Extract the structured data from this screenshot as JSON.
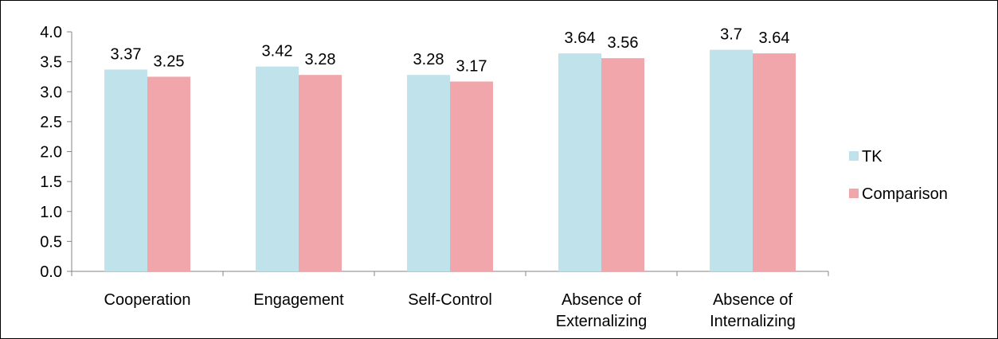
{
  "chart_data": {
    "type": "bar",
    "title": "",
    "xlabel": "",
    "ylabel": "",
    "ylim": [
      0,
      4.0
    ],
    "yticks": [
      "0.0",
      "0.5",
      "1.0",
      "1.5",
      "2.0",
      "2.5",
      "3.0",
      "3.5",
      "4.0"
    ],
    "grid": false,
    "legend_position": "right",
    "categories": [
      [
        "Cooperation"
      ],
      [
        "Engagement"
      ],
      [
        "Self-Control"
      ],
      [
        "Absence of",
        "Externalizing"
      ],
      [
        "Absence of",
        "Internalizing"
      ]
    ],
    "series": [
      {
        "name": "TK",
        "color": "#c0e2ea",
        "values": [
          3.37,
          3.42,
          3.28,
          3.64,
          3.7
        ],
        "labels": [
          "3.37",
          "3.42",
          "3.28",
          "3.64",
          "3.7"
        ]
      },
      {
        "name": "Comparison",
        "color": "#f0a6aa",
        "values": [
          3.25,
          3.28,
          3.17,
          3.56,
          3.64
        ],
        "labels": [
          "3.25",
          "3.28",
          "3.17",
          "3.56",
          "3.64"
        ]
      }
    ]
  }
}
